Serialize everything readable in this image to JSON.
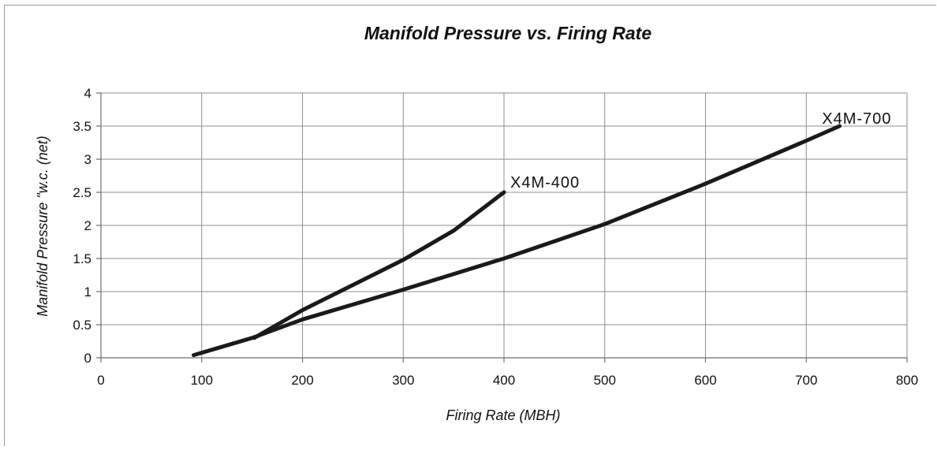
{
  "chart_data": {
    "type": "line",
    "title": "Manifold Pressure vs. Firing Rate",
    "xlabel": "Firing Rate (MBH)",
    "ylabel": "Manifold Pressure \"w.c. (net)",
    "xlim": [
      0,
      800
    ],
    "ylim": [
      0,
      4
    ],
    "xticks": [
      "0",
      "100",
      "200",
      "300",
      "400",
      "500",
      "600",
      "700",
      "800"
    ],
    "yticks": [
      "0",
      "0.5",
      "1",
      "1.5",
      "2",
      "2.5",
      "3",
      "3.5",
      "4"
    ],
    "grid": true,
    "line_color": "#1a1a1a",
    "series": [
      {
        "name": "X4M-400",
        "x": [
          152,
          200,
          250,
          300,
          350,
          400
        ],
        "y": [
          0.3,
          0.72,
          1.1,
          1.48,
          1.92,
          2.5
        ]
      },
      {
        "name": "X4M-700",
        "x": [
          92,
          150,
          200,
          300,
          400,
          500,
          600,
          700,
          733
        ],
        "y": [
          0.04,
          0.3,
          0.58,
          1.03,
          1.5,
          2.02,
          2.63,
          3.28,
          3.5
        ]
      }
    ]
  }
}
